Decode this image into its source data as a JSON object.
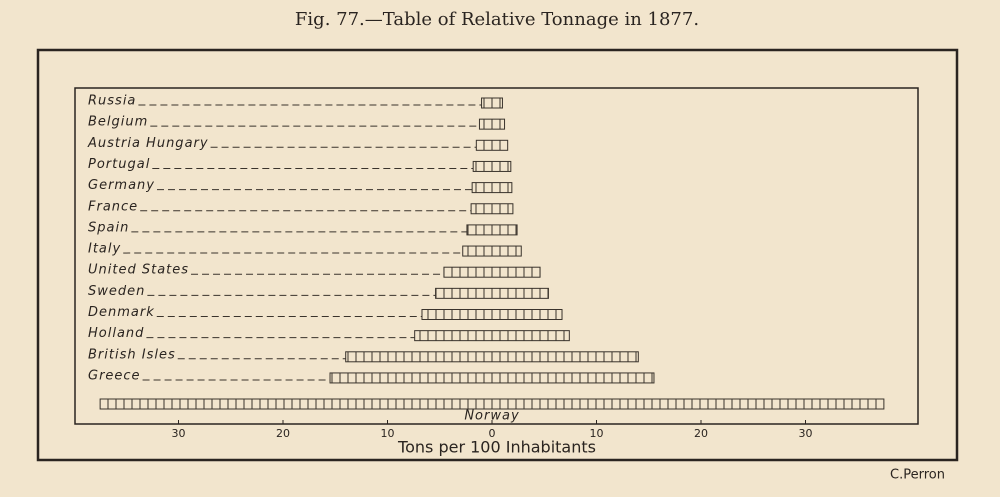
{
  "chart_data": {
    "type": "bar",
    "title": "Fig. 77.—Table of Relative Tonnage in 1877.",
    "x_label": "Tons per 100 Inhabitants",
    "signature": "C.Perron",
    "categories": [
      "Russia",
      "Belgium",
      "Austria Hungary",
      "Portugal",
      "Germany",
      "France",
      "Spain",
      "Italy",
      "United States",
      "Sweden",
      "Denmark",
      "Holland",
      "British Isles",
      "Greece",
      "Norway"
    ],
    "values": [
      1.0,
      1.2,
      1.5,
      1.8,
      1.9,
      2.0,
      2.4,
      2.8,
      4.6,
      5.4,
      6.7,
      7.4,
      14.0,
      15.5,
      37.5
    ],
    "color": "#3a332c",
    "xlim": [
      -40,
      40
    ],
    "xticks": [
      {
        "value": -30,
        "label": "30"
      },
      {
        "value": -20,
        "label": "20"
      },
      {
        "value": -10,
        "label": "10"
      },
      0,
      {
        "value": 10,
        "label": "10"
      },
      {
        "value": 20,
        "label": "20"
      },
      {
        "value": 30,
        "label": "30"
      }
    ]
  }
}
